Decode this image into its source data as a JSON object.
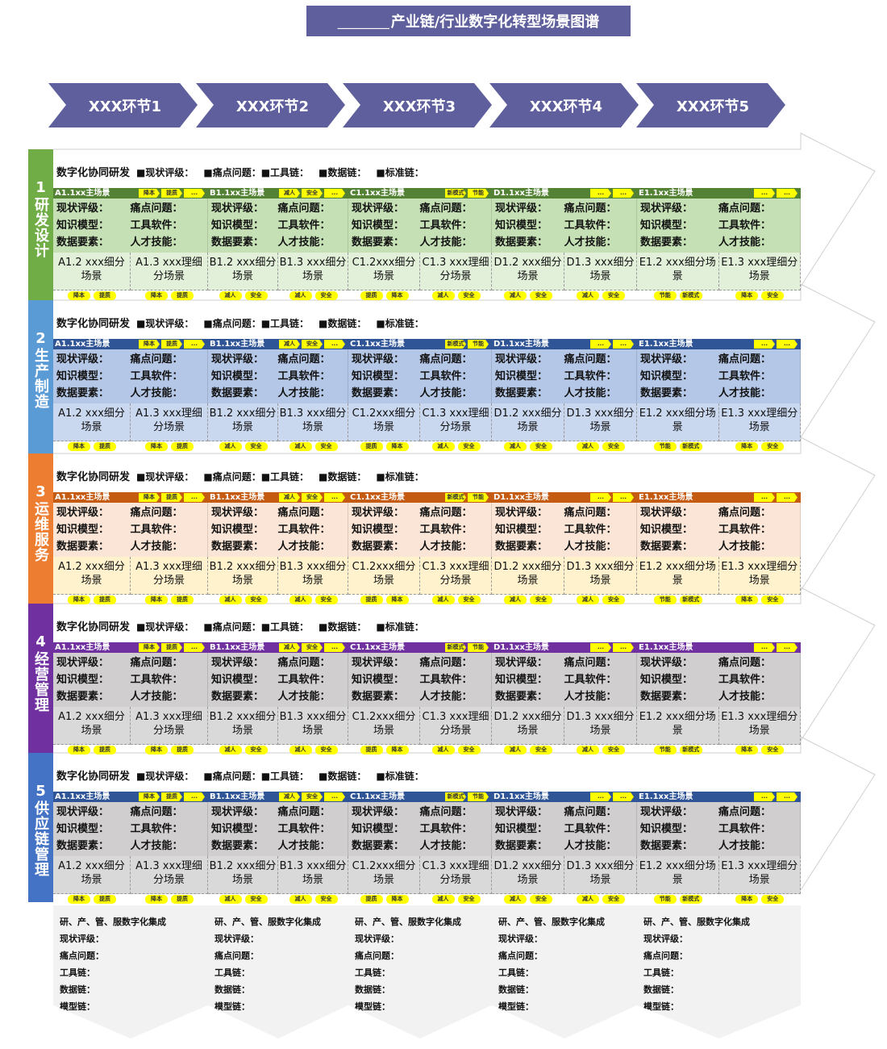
{
  "title": {
    "blank": "________",
    "text": "产业链/行业数字化转型场景图谱"
  },
  "stages": [
    "XXX环节1",
    "XXX环节2",
    "XXX环节3",
    "XXX环节4",
    "XXX环节5"
  ],
  "row_title": {
    "main": "数字化协同研发",
    "items": [
      "■现状评级：",
      "■痛点问题：■工具链：",
      "■数据链：",
      "■标准链："
    ]
  },
  "fields": [
    [
      "现状评级：",
      "痛点问题："
    ],
    [
      "知识模型：",
      "工具软件："
    ],
    [
      "数据要素：",
      "人才技能："
    ]
  ],
  "sections": [
    {
      "number": "1",
      "name": "研发设计",
      "color": "#70ad47",
      "header_color": "#548235",
      "body_color": "#c5e0b4",
      "sub_color": "#e2f0d9"
    },
    {
      "number": "2",
      "name": "生产制造",
      "color": "#5b9bd5",
      "header_color": "#2f5597",
      "body_color": "#b4c7e7",
      "sub_color": "#c9d7ef"
    },
    {
      "number": "3",
      "name": "运维服务",
      "color": "#ed7d31",
      "header_color": "#c55a11",
      "body_color": "#fbe5d6",
      "sub_color": "#fff2cc"
    },
    {
      "number": "4",
      "name": "经营管理",
      "color": "#7030a0",
      "header_color": "#7030a0",
      "body_color": "#d0cece",
      "sub_color": "#d9d9d9"
    },
    {
      "number": "5",
      "name": "供应链管理",
      "color": "#4472c4",
      "header_color": "#2f5597",
      "body_color": "#d0cece",
      "sub_color": "#d9d9d9"
    }
  ],
  "columns": [
    {
      "main": "A1.1xx主场景",
      "tags": [
        "降本",
        "提质",
        "..."
      ],
      "subs": [
        {
          "label": "A1.2 xxx细分场景",
          "tags": [
            "降本",
            "提质"
          ]
        },
        {
          "label": "A1.3 xxx理细分场景",
          "tags": [
            "降本",
            "提质"
          ]
        }
      ]
    },
    {
      "main": "B1.1xx主场景",
      "tags": [
        "减人",
        "安全",
        "..."
      ],
      "subs": [
        {
          "label": "B1.2 xxx细分场景",
          "tags": [
            "减人",
            "安全"
          ]
        },
        {
          "label": "B1.3 xxx细分场景",
          "tags": [
            "减人",
            "安全"
          ]
        }
      ]
    },
    {
      "main": "C1.1xx主场景",
      "tags": [
        "新模式",
        "节能"
      ],
      "subs": [
        {
          "label": "C1.2xxx细分场景",
          "tags": [
            "提质",
            "降本"
          ]
        },
        {
          "label": "C1.3 xxx理细分场景",
          "tags": [
            "减人",
            "安全"
          ]
        }
      ]
    },
    {
      "main": "D1.1xx主场景",
      "tags": [
        "...",
        "..."
      ],
      "subs": [
        {
          "label": "D1.2 xxx细分场景",
          "tags": [
            "减人",
            "安全"
          ]
        },
        {
          "label": "D1.3 xxx细分场景",
          "tags": [
            "减人",
            "安全"
          ]
        }
      ]
    },
    {
      "main": "E1.1xx主场景",
      "tags": [
        "...",
        "..."
      ],
      "subs": [
        {
          "label": "E1.2 xxx细分场景",
          "tags": [
            "节能",
            "新模式"
          ]
        },
        {
          "label": "E1.3 xxx理细分场景",
          "tags": [
            "降本",
            "安全"
          ]
        }
      ]
    }
  ],
  "integration": {
    "heading": "研、产、管、服数字化集成",
    "lines": [
      "现状评级：",
      "痛点问题：",
      "工具链：",
      "数据链：",
      "模型链："
    ]
  }
}
